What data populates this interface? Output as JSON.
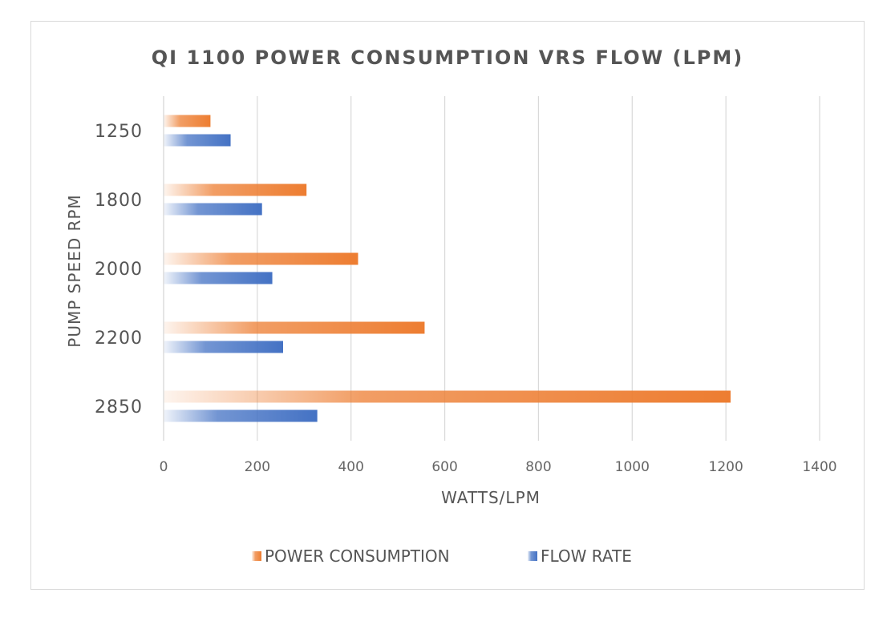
{
  "chart_data": {
    "type": "bar",
    "orientation": "horizontal",
    "title": "QI 1100 POWER CONSUMPTION VRS FLOW (LPM)",
    "xlabel": "WATTS/LPM",
    "ylabel": "PUMP SPEED RPM",
    "categories": [
      "1250",
      "1800",
      "2000",
      "2200",
      "2850"
    ],
    "series": [
      {
        "name": "POWER CONSUMPTION",
        "color": "#ED7D31",
        "values": [
          100,
          305,
          415,
          557,
          1210
        ]
      },
      {
        "name": "FLOW RATE",
        "color": "#4472C4",
        "values": [
          143,
          210,
          232,
          255,
          328
        ]
      }
    ],
    "xlim": [
      0,
      1400
    ],
    "xticks": [
      "0",
      "200",
      "400",
      "600",
      "800",
      "1000",
      "1200",
      "1400"
    ],
    "grid": true,
    "legend_position": "bottom"
  }
}
